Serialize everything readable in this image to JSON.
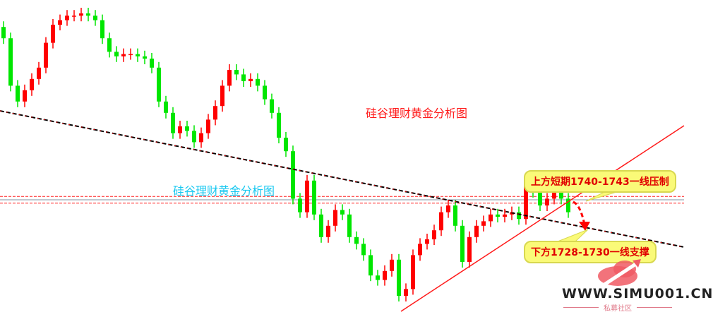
{
  "chart_data": {
    "type": "candlestick",
    "title": "硅谷理财黄金分析图",
    "watermark": "硅谷理财黄金分析图",
    "up_color": "#ff0000",
    "down_color": "#00e600",
    "first_open": 1818,
    "closes": [
      1813,
      1792,
      1785,
      1790,
      1795,
      1800,
      1811,
      1819,
      1821,
      1823,
      1823,
      1824,
      1823,
      1821,
      1813,
      1807,
      1805,
      1806,
      1806,
      1805,
      1804,
      1800,
      1785,
      1780,
      1771,
      1774,
      1772,
      1767,
      1771,
      1777,
      1783,
      1792,
      1799,
      1797,
      1794,
      1795,
      1792,
      1786,
      1780,
      1769,
      1763,
      1742,
      1736,
      1750,
      1735,
      1725,
      1730,
      1737,
      1735,
      1725,
      1722,
      1717,
      1708,
      1706,
      1710,
      1715,
      1699,
      1702,
      1717,
      1722,
      1724,
      1728,
      1736,
      1739,
      1730,
      1714,
      1725,
      1730,
      1732,
      1735,
      1734,
      1735,
      1736,
      1733,
      1748,
      1745,
      1739,
      1742,
      1745,
      1742,
      1736
    ],
    "resistance_level": [
      1740,
      1743
    ],
    "support_level": [
      1728,
      1730
    ],
    "annotations": {
      "resistance": "上方短期1740-1743一线压制",
      "support": "下方1728-1730一线支撑"
    },
    "grid": false
  },
  "logo": {
    "text": "WWW.SIMU001.CN",
    "subtitle": "私募社区",
    "color": "#f05a64"
  }
}
